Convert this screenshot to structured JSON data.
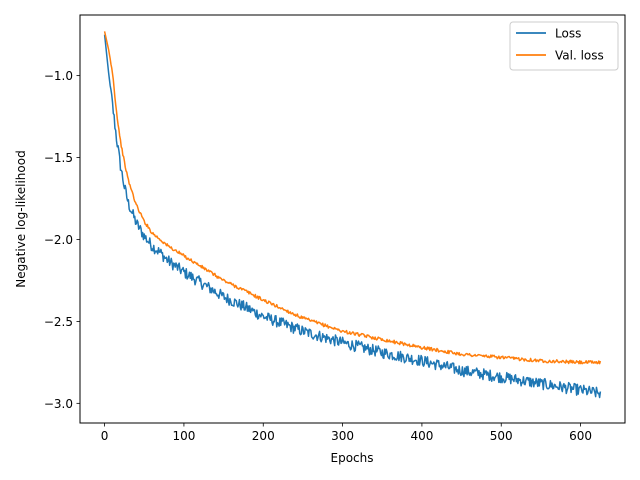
{
  "chart_data": {
    "type": "line",
    "title": "",
    "xlabel": "Epochs",
    "ylabel": "Negative log-likelihood",
    "xlim": [
      -31,
      656
    ],
    "ylim": [
      -3.12,
      -0.63
    ],
    "xticks": [
      0,
      100,
      200,
      300,
      400,
      500,
      600
    ],
    "yticks": [
      -3.0,
      -2.5,
      -2.0,
      -1.5,
      -1.0
    ],
    "ytick_labels": [
      "−3.0",
      "−2.5",
      "−2.0",
      "−1.5",
      "−1.0"
    ],
    "grid": false,
    "legend_position": "top-right",
    "series": [
      {
        "name": "Loss",
        "color": "#1f77b4",
        "noise": 0.035,
        "x": [
          0,
          5,
          10,
          15,
          20,
          25,
          30,
          40,
          50,
          60,
          70,
          80,
          100,
          120,
          150,
          180,
          200,
          250,
          300,
          350,
          400,
          450,
          500,
          550,
          600,
          625
        ],
        "y": [
          -0.75,
          -0.98,
          -1.18,
          -1.38,
          -1.55,
          -1.68,
          -1.78,
          -1.9,
          -1.98,
          -2.04,
          -2.08,
          -2.13,
          -2.2,
          -2.26,
          -2.35,
          -2.42,
          -2.47,
          -2.56,
          -2.63,
          -2.69,
          -2.74,
          -2.8,
          -2.84,
          -2.88,
          -2.92,
          -2.94
        ]
      },
      {
        "name": "Val. loss",
        "color": "#ff7f0e",
        "noise": 0.01,
        "x": [
          0,
          5,
          10,
          15,
          20,
          25,
          30,
          40,
          50,
          60,
          70,
          80,
          100,
          120,
          150,
          180,
          200,
          250,
          300,
          350,
          400,
          450,
          500,
          550,
          600,
          625
        ],
        "y": [
          -0.73,
          -0.84,
          -0.98,
          -1.22,
          -1.4,
          -1.53,
          -1.64,
          -1.79,
          -1.89,
          -1.96,
          -2.0,
          -2.04,
          -2.1,
          -2.16,
          -2.25,
          -2.32,
          -2.37,
          -2.48,
          -2.56,
          -2.61,
          -2.66,
          -2.7,
          -2.72,
          -2.74,
          -2.75,
          -2.75
        ]
      }
    ]
  }
}
